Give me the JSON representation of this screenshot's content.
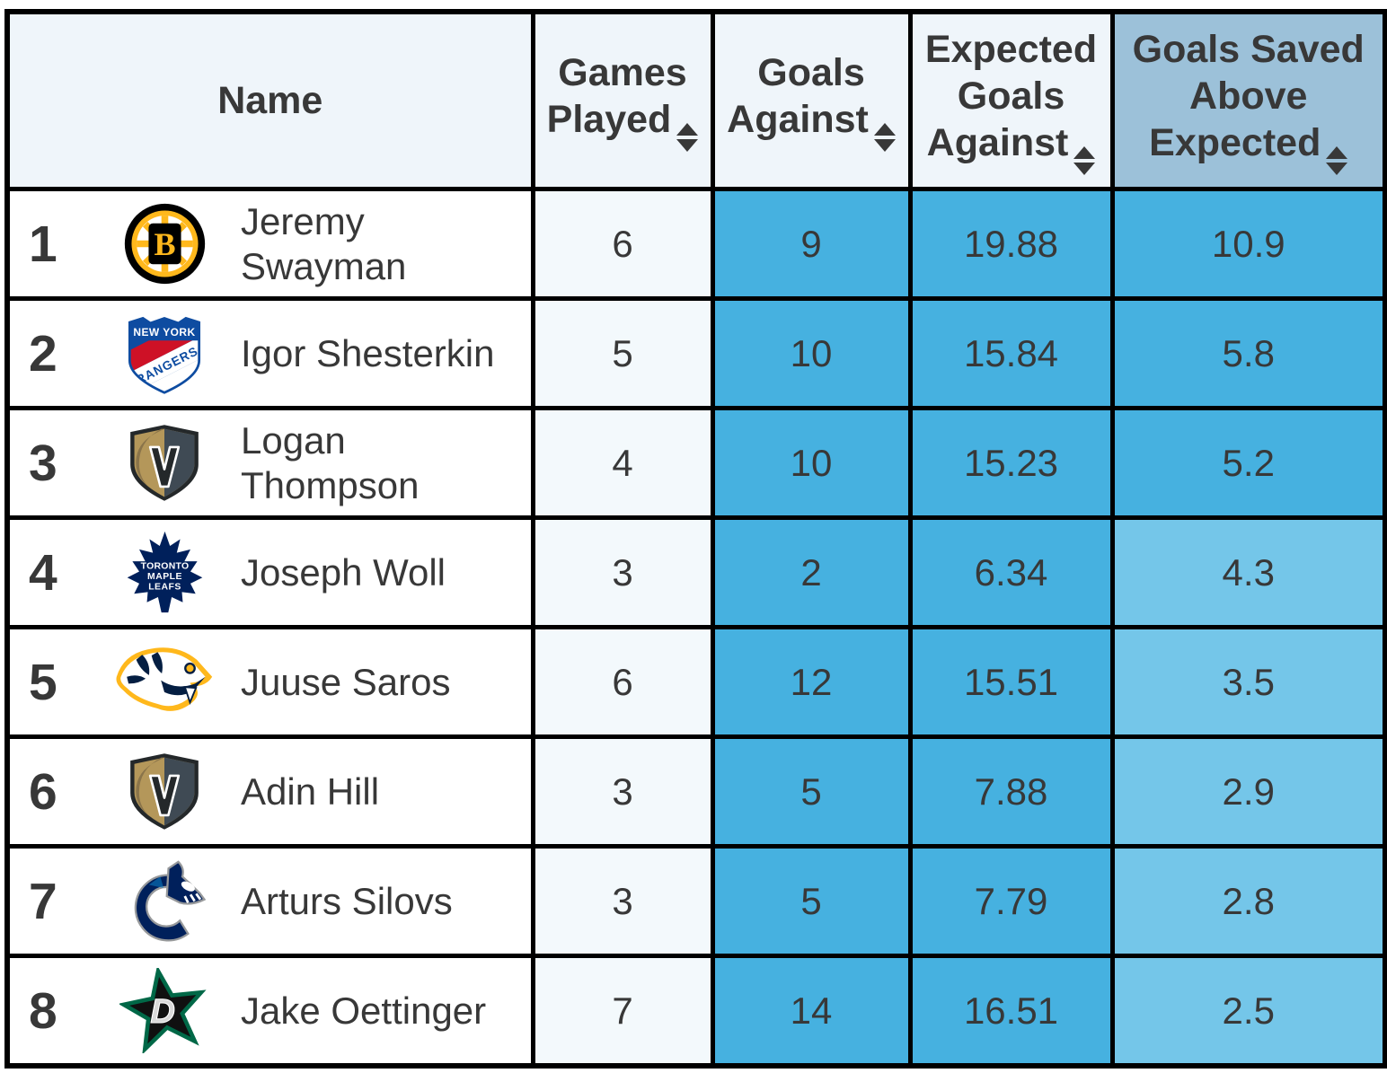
{
  "table": {
    "columns": [
      {
        "label": "Name",
        "sortable": false
      },
      {
        "label": "Games Played",
        "sortable": true,
        "icon": "sort-up-down-icon"
      },
      {
        "label": "Goals Against",
        "sortable": true,
        "icon": "sort-up-down-icon"
      },
      {
        "label": "Expected Goals Against",
        "sortable": true,
        "icon": "sort-up-down-icon"
      },
      {
        "label": "Goals Saved Above Expected",
        "sortable": true,
        "sorted": true,
        "icon": "sort-up-down-icon"
      }
    ],
    "rows": [
      {
        "rank": "1",
        "team": "Boston Bruins",
        "team_key": "BOS",
        "name": "Jeremy Swayman",
        "gp": "6",
        "ga": "9",
        "xga": "19.88",
        "gsax": "10.9"
      },
      {
        "rank": "2",
        "team": "New York Rangers",
        "team_key": "NYR",
        "name": "Igor Shesterkin",
        "gp": "5",
        "ga": "10",
        "xga": "15.84",
        "gsax": "5.8"
      },
      {
        "rank": "3",
        "team": "Vegas Golden Knights",
        "team_key": "VGK",
        "name": "Logan Thompson",
        "gp": "4",
        "ga": "10",
        "xga": "15.23",
        "gsax": "5.2"
      },
      {
        "rank": "4",
        "team": "Toronto Maple Leafs",
        "team_key": "TOR",
        "name": "Joseph Woll",
        "gp": "3",
        "ga": "2",
        "xga": "6.34",
        "gsax": "4.3"
      },
      {
        "rank": "5",
        "team": "Nashville Predators",
        "team_key": "NSH",
        "name": "Juuse Saros",
        "gp": "6",
        "ga": "12",
        "xga": "15.51",
        "gsax": "3.5"
      },
      {
        "rank": "6",
        "team": "Vegas Golden Knights",
        "team_key": "VGK",
        "name": "Adin Hill",
        "gp": "3",
        "ga": "5",
        "xga": "7.88",
        "gsax": "2.9"
      },
      {
        "rank": "7",
        "team": "Vancouver Canucks",
        "team_key": "VAN",
        "name": "Arturs Silovs",
        "gp": "3",
        "ga": "5",
        "xga": "7.79",
        "gsax": "2.8"
      },
      {
        "rank": "8",
        "team": "Dallas Stars",
        "team_key": "DAL",
        "name": "Jake Oettinger",
        "gp": "7",
        "ga": "14",
        "xga": "16.51",
        "gsax": "2.5"
      }
    ]
  },
  "colors": {
    "cell_blue": "#46b1e0",
    "cell_blue_light": "#74c6e9",
    "sorted_header_bg": "#9cc1d9",
    "header_bg": "#eff5fa",
    "gp_col_bg": "#f3f9fc",
    "text": "#383838",
    "border": "#000000"
  }
}
